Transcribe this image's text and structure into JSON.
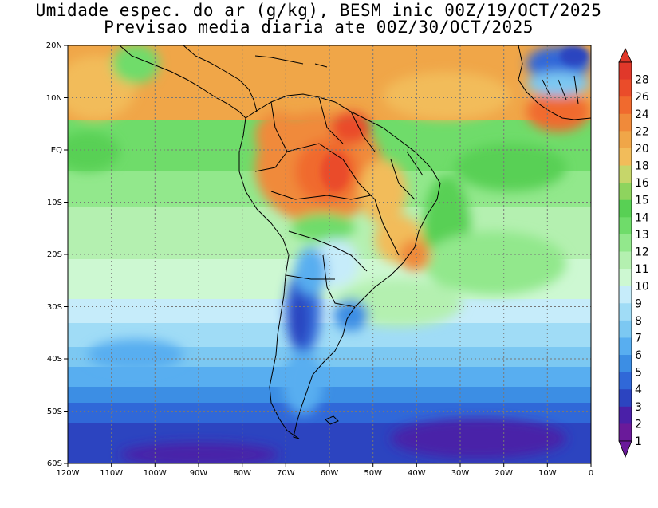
{
  "title_line1": "Umidade espec. do ar (g/kg), BESM inic 00Z/19/OCT/2025",
  "title_line2": "Previsao media diaria ate 00Z/30/OCT/2025",
  "map": {
    "lon_range": [
      -120,
      0
    ],
    "lat_range": [
      -60,
      20
    ],
    "lon_ticks": [
      "120W",
      "110W",
      "100W",
      "90W",
      "80W",
      "70W",
      "60W",
      "50W",
      "40W",
      "30W",
      "20W",
      "10W",
      "0"
    ],
    "lat_ticks": [
      "20N",
      "10N",
      "EQ",
      "10S",
      "20S",
      "30S",
      "40S",
      "50S",
      "60S"
    ],
    "grid": "dotted"
  },
  "colorbar": {
    "levels": [
      "28",
      "26",
      "24",
      "22",
      "20",
      "18",
      "16",
      "15",
      "14",
      "13",
      "12",
      "11",
      "10",
      "9",
      "8",
      "7",
      "6",
      "5",
      "4",
      "3",
      "2",
      "1"
    ],
    "colors": [
      "#e0382a",
      "#ea4c2a",
      "#f06a2e",
      "#f08a3a",
      "#f0a648",
      "#f2bc5a",
      "#c6d66a",
      "#8ed45e",
      "#58d054",
      "#6fdc6a",
      "#92e88c",
      "#b4f0b0",
      "#cdf8d2",
      "#c6ecfa",
      "#a0dcf6",
      "#7cc8f2",
      "#58aef0",
      "#3c8ee4",
      "#3068d8",
      "#2c44c0",
      "#4a20a8",
      "#6a1a9a"
    ]
  }
}
